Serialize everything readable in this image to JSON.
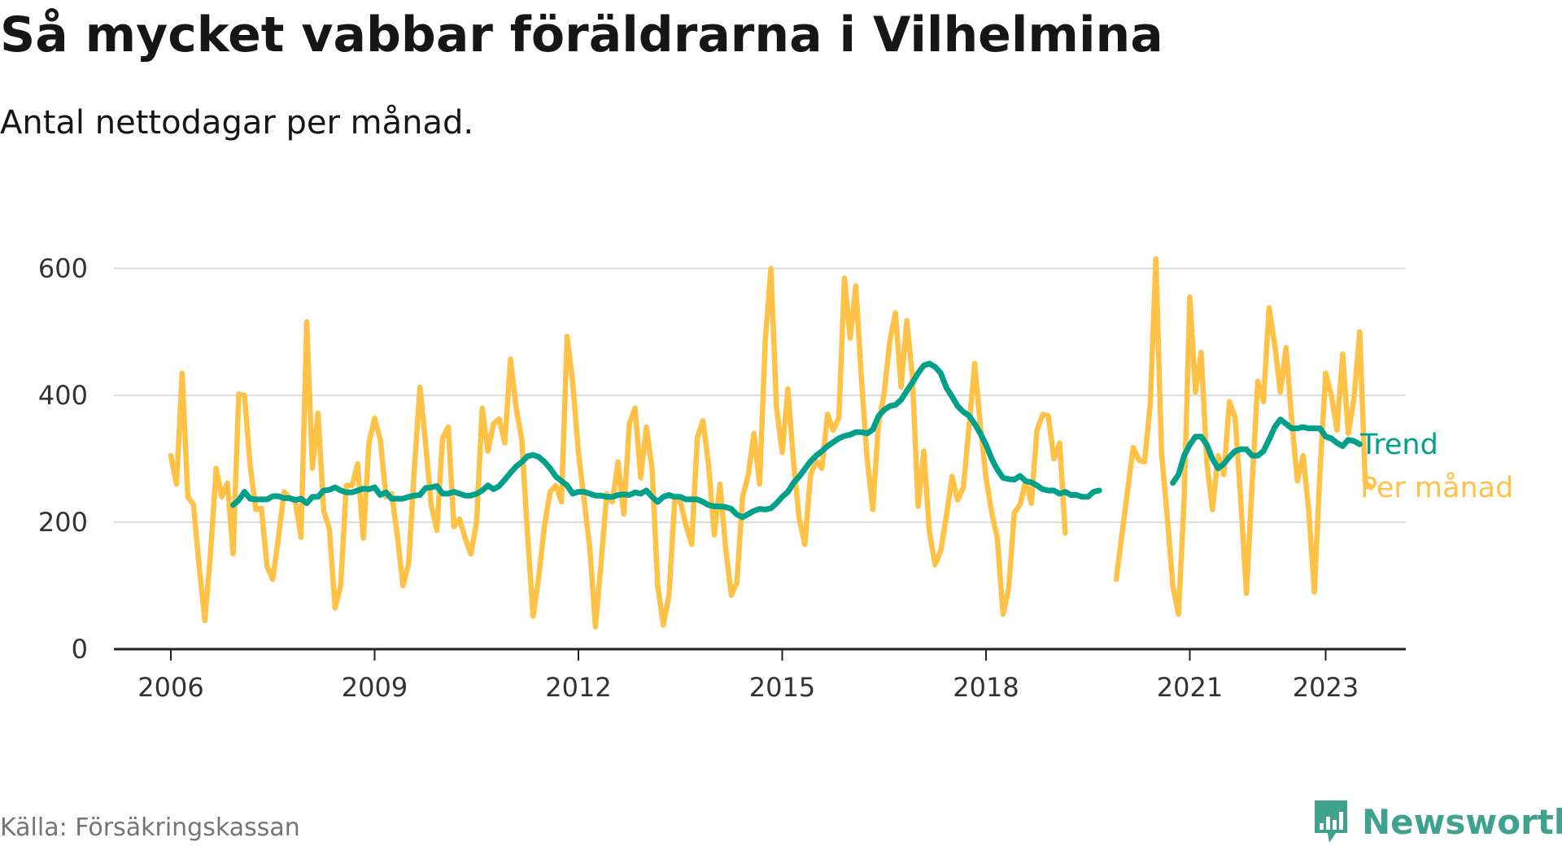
{
  "header": {
    "title": "Så mycket vabbar föräldrarna i Vilhelmina",
    "subtitle": "Antal nettodagar per månad."
  },
  "footer": {
    "source": "Källa: Försäkringskassan",
    "brand": "Newsworthy",
    "brand_icon": "bar-chart-speech-bubble-icon"
  },
  "colors": {
    "monthly": "#FFC247",
    "trend": "#00A08A",
    "axis": "#222222",
    "grid": "#dddddd",
    "text": "#333333",
    "brand": "#3FA28E"
  },
  "chart_data": {
    "type": "line",
    "title": "Så mycket vabbar föräldrarna i Vilhelmina",
    "subtitle": "Antal nettodagar per månad.",
    "x_axis": {
      "type": "date",
      "min": "2006-01",
      "max": "2024-12",
      "ticks": [
        "2006",
        "2009",
        "2012",
        "2015",
        "2018",
        "2021",
        "2023"
      ]
    },
    "y_axis": {
      "min": 0,
      "max": 600,
      "ticks": [
        0,
        200,
        400,
        600
      ]
    },
    "grid": true,
    "legend": "direct labels at line ends",
    "series": [
      {
        "name": "Per månad",
        "segments": [
          {
            "start": "2006-01",
            "values": [
              305,
              260,
              435,
              240,
              228,
              130,
              45,
              150,
              285,
              240,
              262,
              150,
              402,
              400,
              290,
              220,
              222,
              130,
              110,
              175,
              248,
              238,
              232,
              176,
              516,
              285,
              372,
              218,
              190,
              65,
              100,
              258,
              258,
              292,
              175,
              325,
              364,
              330,
              240,
              245,
              180,
              100,
              135,
              282,
              413,
              325,
              226,
              187,
              333,
              350,
              193,
              205,
              175,
              150,
              200,
              380,
              312,
              355,
              363,
              325,
              457,
              380,
              330,
              180,
              52,
              115,
              195,
              248,
              258,
              232,
              493,
              420,
              310,
              235,
              160,
              35,
              135,
              245,
              232,
              295,
              213,
              355,
              380,
              270,
              350,
              285,
              100,
              38,
              85,
              235,
              232,
              195,
              165,
              333,
              360,
              290,
              180,
              260,
              160,
              85,
              105,
              240,
              275,
              340,
              260,
              485,
              600,
              380,
              310,
              410,
              295,
              205,
              165,
              275,
              296,
              285,
              370,
              345,
              365,
              585,
              490,
              572,
              425,
              300,
              220,
              355,
              403,
              485,
              530,
              413,
              518,
              430,
              225,
              312,
              185,
              133,
              155,
              210,
              272,
              235,
              255,
              350,
              450,
              353,
              270,
              215,
              175,
              55,
              95,
              215,
              228,
              265,
              230,
              345,
              370,
              368,
              300,
              325,
              183
            ]
          },
          {
            "start": "2019-12",
            "values": [
              110,
              180,
              250,
              318,
              298,
              295,
              385,
              615,
              310,
              210,
              100,
              55,
              235,
              555,
              405,
              468,
              295,
              220,
              305,
              275,
              390,
              365,
              235,
              88,
              258,
              422,
              390,
              538,
              480,
              405,
              475,
              360,
              265,
              305,
              220,
              90,
              280,
              435,
              400,
              345,
              465,
              340,
              395,
              500,
              262,
              255
            ]
          }
        ]
      },
      {
        "name": "Trend",
        "segments": [
          {
            "start": "2006-12",
            "values": [
              227,
              235,
              248,
              237,
              236,
              236,
              236,
              241,
              241,
              238,
              238,
              235,
              237,
              230,
              240,
              240,
              250,
              251,
              255,
              250,
              247,
              247,
              250,
              253,
              252,
              255,
              243,
              247,
              237,
              237,
              237,
              240,
              242,
              243,
              254,
              255,
              257,
              245,
              245,
              248,
              245,
              242,
              242,
              245,
              250,
              258,
              252,
              257,
              267,
              278,
              288,
              295,
              304,
              306,
              303,
              295,
              285,
              272,
              265,
              258,
              245,
              248,
              248,
              245,
              242,
              242,
              240,
              240,
              243,
              244,
              243,
              247,
              245,
              250,
              240,
              232,
              240,
              243,
              240,
              240,
              236,
              236,
              236,
              232,
              227,
              225,
              225,
              224,
              221,
              212,
              208,
              213,
              218,
              221,
              220,
              222,
              230,
              240,
              248,
              262,
              272,
              284,
              296,
              305,
              312,
              320,
              326,
              332,
              336,
              338,
              342,
              342,
              340,
              346,
              367,
              377,
              383,
              385,
              393,
              407,
              420,
              435,
              447,
              450,
              445,
              435,
              412,
              398,
              383,
              374,
              368,
              355,
              340,
              322,
              300,
              283,
              270,
              268,
              267,
              273,
              265,
              263,
              258,
              252,
              250,
              250,
              245,
              248,
              243,
              243,
              240,
              240,
              248,
              250
            ]
          },
          {
            "start": "2020-10",
            "values": [
              262,
              275,
              305,
              322,
              335,
              335,
              322,
              300,
              285,
              292,
              303,
              312,
              315,
              315,
              305,
              305,
              312,
              330,
              350,
              362,
              355,
              348,
              348,
              350,
              348,
              348,
              348,
              335,
              332,
              325,
              320,
              330,
              328,
              323
            ]
          }
        ]
      }
    ]
  }
}
